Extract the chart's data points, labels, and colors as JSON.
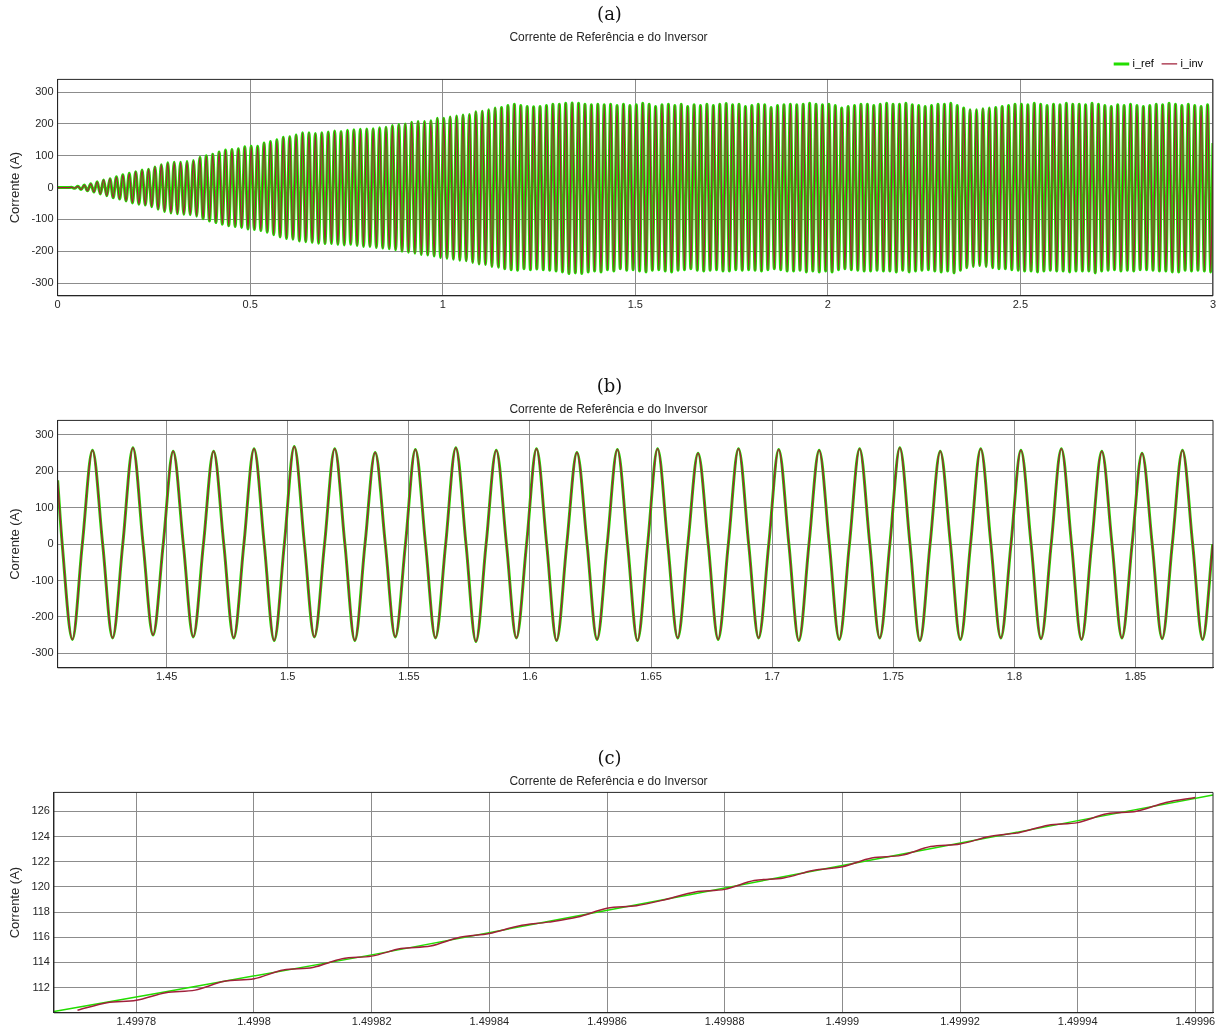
{
  "chart_data": [
    {
      "type": "line",
      "title": "Corrente de Referência e do Inversor",
      "ylabel": "Corrente (A)",
      "annotations": [
        "(a)"
      ],
      "xlim": [
        0,
        3
      ],
      "xticks": [
        0,
        0.5,
        1,
        1.5,
        2,
        2.5,
        3
      ],
      "ylim": [
        -340,
        340
      ],
      "yticks": [
        -300,
        -200,
        -100,
        0,
        100,
        200,
        300
      ],
      "grid": true,
      "legend": "top right",
      "marker": "none",
      "x": [
        0,
        0.0027,
        0.011,
        0.0193,
        0.0277,
        0.036,
        0.0443,
        0.0527,
        0.061,
        0.0693,
        0.0777,
        0.086,
        0.0943,
        0.1027,
        0.111,
        0.1193,
        0.1277,
        0.136,
        0.1443,
        0.1527,
        0.161,
        0.1693,
        0.1777,
        0.186,
        0.1943,
        0.2027,
        0.211,
        0.2193,
        0.2277,
        0.236,
        0.2443,
        0.2527,
        0.261,
        0.2693,
        0.2777,
        0.286,
        0.2943,
        0.3027,
        0.311,
        0.3193,
        0.3277,
        0.336,
        0.3443,
        0.3527,
        0.361,
        0.3693,
        0.3777,
        0.386,
        0.3943,
        0.4027,
        0.411,
        0.4193,
        0.4277,
        0.436,
        0.4443,
        0.4527,
        0.461,
        0.4693,
        0.4777,
        0.486,
        0.4943,
        0.5027,
        0.511,
        0.5193,
        0.5277,
        0.536,
        0.5443,
        0.5527,
        0.561,
        0.5693,
        0.5777,
        0.586,
        0.5943,
        0.6027,
        0.611,
        0.6193,
        0.6277,
        0.636,
        0.6443,
        0.6527,
        0.661,
        0.6693,
        0.6777,
        0.686,
        0.6943,
        0.7027,
        0.711,
        0.7193,
        0.7277,
        0.736,
        0.7443,
        0.7527,
        0.761,
        0.7693,
        0.7777,
        0.786,
        0.7943,
        0.8027,
        0.811,
        0.8193,
        0.8277,
        0.836,
        0.8443,
        0.8527,
        0.861,
        0.8693,
        0.8777,
        0.886,
        0.8943,
        0.9027,
        0.911,
        0.9193,
        0.9277,
        0.936,
        0.9443,
        0.9527,
        0.961,
        0.9693,
        0.9777,
        0.986,
        0.9943,
        1.0027,
        1.011,
        1.0193,
        1.0277,
        1.036,
        1.0443,
        1.0527,
        1.061,
        1.0693,
        1.0777,
        1.086,
        1.0943,
        1.1027,
        1.111,
        1.1193,
        1.1277,
        1.136,
        1.1443,
        1.1527,
        1.161,
        1.1693,
        1.1777,
        1.186,
        1.1943,
        1.2027,
        1.211,
        1.2193,
        1.2277,
        1.236,
        1.2443,
        1.2527,
        1.261,
        1.2693,
        1.2777,
        1.286,
        1.2943,
        1.3027,
        1.311,
        1.3193,
        1.3277,
        1.336,
        1.3443,
        1.3527,
        1.361,
        1.3693,
        1.3777,
        1.386,
        1.3943,
        1.4027,
        1.411,
        1.4193,
        1.4277,
        1.436,
        1.4443,
        1.4527,
        1.461,
        1.4693,
        1.4777,
        1.486,
        1.4943,
        1.5027,
        1.511,
        1.5193,
        1.5277,
        1.536,
        1.5443,
        1.5527,
        1.561,
        1.5693,
        1.5777,
        1.586,
        1.5943,
        1.6027,
        1.611,
        1.6193,
        1.6277,
        1.636,
        1.6443,
        1.6527,
        1.661,
        1.6693,
        1.6777,
        1.686,
        1.6943,
        1.7027,
        1.711,
        1.7193,
        1.7277,
        1.736,
        1.7443,
        1.7527,
        1.761,
        1.7693,
        1.7777,
        1.786,
        1.7943,
        1.8027,
        1.811,
        1.8193,
        1.8277,
        1.836,
        1.8443,
        1.8527,
        1.861,
        1.8693,
        1.8777,
        1.886,
        1.8943,
        1.9027,
        1.911,
        1.9193,
        1.9277,
        1.936,
        1.9443,
        1.9527,
        1.961,
        1.9693,
        1.9777,
        1.986,
        1.9943,
        2.0027,
        2.011,
        2.0193,
        2.0277,
        2.036,
        2.0443,
        2.0527,
        2.061,
        2.0693,
        2.0777,
        2.086,
        2.0943,
        2.1027,
        2.111,
        2.1193,
        2.1277,
        2.136,
        2.1443,
        2.1527,
        2.161,
        2.1693,
        2.1777,
        2.186,
        2.1943,
        2.2027,
        2.211,
        2.2193,
        2.2277,
        2.236,
        2.2443,
        2.2527,
        2.261,
        2.2693,
        2.2777,
        2.286,
        2.2943,
        2.3027,
        2.311,
        2.3193,
        2.3277,
        2.336,
        2.3443,
        2.3527,
        2.361,
        2.3693,
        2.3777,
        2.386,
        2.3943,
        2.4027,
        2.411,
        2.4193,
        2.4277,
        2.436,
        2.4443,
        2.4527,
        2.461,
        2.4693,
        2.4777,
        2.486,
        2.4943,
        2.5027,
        2.511,
        2.5193,
        2.5277,
        2.536,
        2.5443,
        2.5527,
        2.561,
        2.5693,
        2.5777,
        2.586,
        2.5943,
        2.6027,
        2.611,
        2.6193,
        2.6277,
        2.636,
        2.6443,
        2.6527,
        2.661,
        2.6693,
        2.6777,
        2.686,
        2.6943,
        2.7027,
        2.711,
        2.7193,
        2.7277,
        2.736,
        2.7443,
        2.7527,
        2.761,
        2.7693,
        2.7777,
        2.786,
        2.7943,
        2.8027,
        2.811,
        2.8193,
        2.8277,
        2.836,
        2.8443,
        2.8527,
        2.861,
        2.8693,
        2.8777,
        2.886,
        2.8943,
        2.9027,
        2.911,
        2.9193,
        2.9277,
        2.936,
        2.9443,
        2.9527,
        2.961,
        2.9693,
        2.9777,
        2.986,
        2.9943,
        3
      ],
      "series": [
        {
          "name": "i_ref",
          "color": "#22dd00",
          "values": [
            0,
            0,
            0,
            0,
            0,
            1,
            -2,
            4,
            -6,
            8,
            -10,
            12,
            -14,
            18,
            -20,
            24,
            -26,
            28,
            -32,
            34,
            -36,
            40,
            -42,
            45,
            -48,
            50,
            -52,
            55,
            -55,
            58,
            -60,
            65,
            -68,
            72,
            -75,
            78,
            -80,
            80,
            -82,
            80,
            -84,
            82,
            -85,
            85,
            -90,
            95,
            -98,
            100,
            -105,
            105,
            -110,
            112,
            -115,
            118,
            -120,
            120,
            -122,
            122,
            -125,
            128,
            -130,
            130,
            -132,
            130,
            -135,
            140,
            -140,
            145,
            -148,
            150,
            -155,
            158,
            -160,
            160,
            -162,
            165,
            -168,
            172,
            -170,
            172,
            -172,
            170,
            -175,
            172,
            -176,
            175,
            -176,
            178,
            -178,
            176,
            -180,
            180,
            -178,
            182,
            -182,
            183,
            -185,
            184,
            -185,
            185,
            -188,
            188,
            -190,
            190,
            -192,
            195,
            -195,
            198,
            -200,
            200,
            -203,
            205,
            -206,
            208,
            -210,
            208,
            -212,
            210,
            -215,
            218,
            -220,
            218,
            -222,
            222,
            -225,
            225,
            -228,
            228,
            -230,
            230,
            -235,
            238,
            -240,
            240,
            -242,
            245,
            -248,
            250,
            -250,
            252,
            -255,
            258,
            -258,
            262,
            -260,
            258,
            -255,
            255,
            -258,
            254,
            -256,
            255,
            -258,
            258,
            -260,
            262,
            -262,
            262,
            -265,
            265,
            -270,
            266,
            -268,
            265,
            -270,
            262,
            -265,
            260,
            -262,
            262,
            -265,
            260,
            -258,
            262,
            -262,
            258,
            -255,
            262,
            -260,
            258,
            -258,
            260,
            -262,
            265,
            -265,
            262,
            -260,
            255,
            -258,
            260,
            -262,
            262,
            -265,
            258,
            -260,
            262,
            -258,
            255,
            -255,
            260,
            -260,
            258,
            -262,
            262,
            -260,
            258,
            -258,
            262,
            -262,
            264,
            -262,
            260,
            -258,
            262,
            -260,
            255,
            -258,
            258,
            -260,
            262,
            -262,
            260,
            -258,
            252,
            -255,
            258,
            -258,
            260,
            -262,
            262,
            -262,
            260,
            -260,
            262,
            -265,
            265,
            -262,
            262,
            -265,
            260,
            -262,
            262,
            -265,
            258,
            -258,
            250,
            -255,
            255,
            -258,
            258,
            -260,
            262,
            -262,
            262,
            -262,
            258,
            -260,
            262,
            -262,
            265,
            -262,
            262,
            -265,
            262,
            -260,
            265,
            -265,
            260,
            -262,
            258,
            -260,
            255,
            -258,
            258,
            -262,
            262,
            -265,
            262,
            -262,
            265,
            -268,
            258,
            -260,
            250,
            -252,
            245,
            -248,
            245,
            -245,
            248,
            -248,
            250,
            -252,
            252,
            -255,
            255,
            -255,
            258,
            -258,
            262,
            -260,
            262,
            -262,
            260,
            -262,
            265,
            -265,
            262,
            -262,
            258,
            -260,
            262,
            -262,
            260,
            -262,
            265,
            -265,
            262,
            -262,
            262,
            -262,
            260,
            -262,
            265,
            -268,
            262,
            -262,
            258,
            -260,
            255,
            -258,
            260,
            -262,
            258,
            -260,
            262,
            -262,
            258,
            -258,
            255,
            -258,
            258,
            -260,
            262,
            -262,
            260,
            -262,
            265,
            -265,
            262,
            -265,
            258,
            -260,
            262,
            -262,
            258,
            -260,
            255,
            -262,
            260,
            -265,
            140
          ]
        },
        {
          "name": "i_inv",
          "color": "#a0203a",
          "values": [
            0,
            0,
            0,
            0,
            0,
            1,
            -2,
            4,
            -6,
            8,
            -10,
            12,
            -14,
            18,
            -20,
            24,
            -26,
            28,
            -32,
            34,
            -36,
            40,
            -42,
            45,
            -48,
            50,
            -52,
            55,
            -55,
            58,
            -60,
            65,
            -68,
            72,
            -75,
            78,
            -80,
            80,
            -82,
            80,
            -84,
            82,
            -85,
            85,
            -90,
            95,
            -98,
            100,
            -105,
            105,
            -110,
            112,
            -115,
            118,
            -120,
            120,
            -122,
            122,
            -125,
            128,
            -130,
            130,
            -132,
            130,
            -135,
            140,
            -140,
            145,
            -148,
            150,
            -155,
            158,
            -160,
            160,
            -162,
            165,
            -168,
            172,
            -170,
            172,
            -172,
            170,
            -175,
            172,
            -176,
            175,
            -176,
            178,
            -178,
            176,
            -180,
            180,
            -178,
            182,
            -182,
            183,
            -185,
            184,
            -185,
            185,
            -188,
            188,
            -190,
            190,
            -192,
            195,
            -195,
            198,
            -200,
            200,
            -203,
            205,
            -206,
            208,
            -210,
            208,
            -212,
            210,
            -215,
            218,
            -220,
            218,
            -222,
            222,
            -225,
            225,
            -228,
            228,
            -230,
            230,
            -235,
            238,
            -240,
            240,
            -242,
            245,
            -248,
            250,
            -250,
            252,
            -255,
            258,
            -258,
            262,
            -260,
            258,
            -255,
            255,
            -258,
            254,
            -256,
            255,
            -258,
            258,
            -260,
            262,
            -262,
            262,
            -265,
            265,
            -270,
            266,
            -268,
            265,
            -270,
            262,
            -265,
            260,
            -262,
            262,
            -265,
            260,
            -258,
            262,
            -262,
            258,
            -255,
            262,
            -260,
            258,
            -258,
            260,
            -262,
            265,
            -265,
            262,
            -260,
            255,
            -258,
            260,
            -262,
            262,
            -265,
            258,
            -260,
            262,
            -258,
            255,
            -255,
            260,
            -260,
            258,
            -262,
            262,
            -260,
            258,
            -258,
            262,
            -262,
            264,
            -262,
            260,
            -258,
            262,
            -260,
            255,
            -258,
            258,
            -260,
            262,
            -262,
            260,
            -258,
            252,
            -255,
            258,
            -258,
            260,
            -262,
            262,
            -262,
            260,
            -260,
            262,
            -265,
            265,
            -262,
            262,
            -265,
            260,
            -262,
            262,
            -265,
            258,
            -258,
            250,
            -255,
            255,
            -258,
            258,
            -260,
            262,
            -262,
            262,
            -262,
            258,
            -260,
            262,
            -262,
            265,
            -262,
            262,
            -265,
            262,
            -260,
            265,
            -265,
            260,
            -262,
            258,
            -260,
            255,
            -258,
            258,
            -262,
            262,
            -265,
            262,
            -262,
            265,
            -268,
            258,
            -260,
            250,
            -252,
            245,
            -248,
            245,
            -245,
            248,
            -248,
            250,
            -252,
            252,
            -255,
            255,
            -255,
            258,
            -258,
            262,
            -260,
            262,
            -262,
            260,
            -262,
            265,
            -265,
            262,
            -262,
            258,
            -260,
            262,
            -262,
            260,
            -262,
            265,
            -265,
            262,
            -262,
            262,
            -262,
            260,
            -262,
            265,
            -268,
            262,
            -262,
            258,
            -260,
            255,
            -258,
            260,
            -262,
            258,
            -260,
            262,
            -262,
            258,
            -258,
            255,
            -258,
            258,
            -260,
            262,
            -262,
            260,
            -262,
            265,
            -265,
            262,
            -265,
            258,
            -260,
            262,
            -262,
            258,
            -260,
            255,
            -262,
            260,
            -265,
            140
          ]
        }
      ]
    },
    {
      "type": "line",
      "title": "Corrente de Referência e do Inversor",
      "ylabel": "Corrente (A)",
      "annotations": [
        "(b)"
      ],
      "xlim": [
        1.405,
        1.882
      ],
      "xticks": [
        1.45,
        1.5,
        1.55,
        1.6,
        1.65,
        1.7,
        1.75,
        1.8,
        1.85
      ],
      "ylim": [
        -340,
        340
      ],
      "yticks": [
        -300,
        -200,
        -100,
        0,
        100,
        200,
        300
      ],
      "grid": true,
      "marker": "none",
      "x": [
        1.405,
        1.4069,
        1.4111,
        1.4152,
        1.4194,
        1.4236,
        1.4277,
        1.4319,
        1.4361,
        1.4403,
        1.4444,
        1.4486,
        1.4527,
        1.4569,
        1.461,
        1.4652,
        1.4694,
        1.4736,
        1.4777,
        1.4819,
        1.4861,
        1.4903,
        1.4944,
        1.4986,
        1.5027,
        1.5069,
        1.511,
        1.5152,
        1.5194,
        1.5236,
        1.5277,
        1.5319,
        1.5361,
        1.5403,
        1.5444,
        1.5486,
        1.5527,
        1.5569,
        1.561,
        1.5652,
        1.5694,
        1.5736,
        1.5777,
        1.5819,
        1.5861,
        1.5903,
        1.5944,
        1.5986,
        1.6027,
        1.6069,
        1.611,
        1.6152,
        1.6194,
        1.6236,
        1.6277,
        1.6319,
        1.6361,
        1.6403,
        1.6444,
        1.6486,
        1.6527,
        1.6569,
        1.661,
        1.6652,
        1.6694,
        1.6736,
        1.6777,
        1.6819,
        1.6861,
        1.6903,
        1.6944,
        1.6986,
        1.7027,
        1.7069,
        1.711,
        1.7152,
        1.7194,
        1.7236,
        1.7277,
        1.7319,
        1.7361,
        1.7403,
        1.7444,
        1.7486,
        1.7527,
        1.7569,
        1.761,
        1.7652,
        1.7694,
        1.7736,
        1.7777,
        1.7819,
        1.7861,
        1.7903,
        1.7944,
        1.7986,
        1.8027,
        1.8069,
        1.811,
        1.8152,
        1.8194,
        1.8236,
        1.8277,
        1.8319,
        1.8361,
        1.8403,
        1.8444,
        1.8486,
        1.8527,
        1.8569,
        1.861,
        1.8652,
        1.8694,
        1.8736,
        1.8777,
        1.8819
      ],
      "series": [
        {
          "color": "#22dd00",
          "values": [
            175,
            0,
            -262,
            0,
            258,
            0,
            -258,
            0,
            265,
            0,
            -250,
            0,
            255,
            0,
            -255,
            0,
            255,
            0,
            -258,
            0,
            262,
            0,
            -265,
            0,
            268,
            0,
            -255,
            0,
            262,
            0,
            -265,
            0,
            252,
            0,
            -255,
            0,
            260,
            0,
            -258,
            0,
            265,
            0,
            -268,
            0,
            258,
            0,
            -258,
            0,
            262,
            0,
            -265,
            0,
            252,
            0,
            -262,
            0,
            260,
            0,
            -265,
            0,
            262,
            0,
            -258,
            0,
            250,
            0,
            -262,
            0,
            262,
            0,
            -258,
            0,
            260,
            0,
            -265,
            0,
            258,
            0,
            -262,
            0,
            262,
            0,
            -258,
            0,
            265,
            0,
            -265,
            0,
            255,
            0,
            -262,
            0,
            262,
            0,
            -258,
            0,
            258,
            0,
            -260,
            0,
            262,
            0,
            -262,
            0,
            255,
            0,
            -258,
            0,
            250,
            0,
            -260,
            0,
            258,
            0,
            -262,
            0
          ]
        },
        {
          "color": "#a0203a",
          "values": [
            175,
            0,
            -262,
            0,
            258,
            0,
            -258,
            0,
            265,
            0,
            -250,
            0,
            255,
            0,
            -255,
            0,
            255,
            0,
            -258,
            0,
            262,
            0,
            -265,
            0,
            268,
            0,
            -255,
            0,
            262,
            0,
            -265,
            0,
            252,
            0,
            -255,
            0,
            260,
            0,
            -258,
            0,
            265,
            0,
            -268,
            0,
            258,
            0,
            -258,
            0,
            262,
            0,
            -265,
            0,
            252,
            0,
            -262,
            0,
            260,
            0,
            -265,
            0,
            262,
            0,
            -258,
            0,
            250,
            0,
            -262,
            0,
            262,
            0,
            -258,
            0,
            260,
            0,
            -265,
            0,
            258,
            0,
            -262,
            0,
            262,
            0,
            -258,
            0,
            265,
            0,
            -265,
            0,
            255,
            0,
            -262,
            0,
            262,
            0,
            -258,
            0,
            258,
            0,
            -260,
            0,
            262,
            0,
            -262,
            0,
            255,
            0,
            -258,
            0,
            250,
            0,
            -260,
            0,
            258,
            0,
            -262,
            0
          ]
        }
      ]
    },
    {
      "type": "line",
      "title": "Corrente de Referência e do Inversor",
      "ylabel": "Corrente (A)",
      "annotations": [
        "(c)"
      ],
      "xlim": [
        1.499766,
        1.499963
      ],
      "xticks": [
        1.49978,
        1.4998,
        1.49982,
        1.49984,
        1.49986,
        1.49988,
        1.4999,
        1.49992,
        1.49994,
        1.49996
      ],
      "ylim": [
        110,
        127.5
      ],
      "yticks": [
        112,
        114,
        116,
        118,
        120,
        122,
        124,
        126
      ],
      "grid": true,
      "marker": "none",
      "series": [
        {
          "color": "#22dd00",
          "x": [
            1.499766,
            1.49982,
            1.4999,
            1.499963
          ],
          "values": [
            110.1,
            114.6,
            121.7,
            127.3
          ]
        },
        {
          "color": "#a0203a",
          "x": [
            1.49977,
            1.499775,
            1.49978,
            1.499785,
            1.49979,
            1.499795,
            1.4998,
            1.499805,
            1.49981,
            1.499815,
            1.49982,
            1.499825,
            1.49983,
            1.499835,
            1.49984,
            1.499845,
            1.49985,
            1.499855,
            1.49986,
            1.499865,
            1.49987,
            1.499875,
            1.49988,
            1.499885,
            1.49989,
            1.499895,
            1.4999,
            1.499905,
            1.49991,
            1.499915,
            1.49992,
            1.499925,
            1.49993,
            1.499935,
            1.49994,
            1.499945,
            1.49995,
            1.499955,
            1.49996
          ],
          "values": [
            110.2,
            110.8,
            111.0,
            111.6,
            111.8,
            112.5,
            112.7,
            113.4,
            113.6,
            114.3,
            114.5,
            115.1,
            115.3,
            116.0,
            116.3,
            116.9,
            117.2,
            117.6,
            118.3,
            118.5,
            119.0,
            119.6,
            119.8,
            120.5,
            120.7,
            121.3,
            121.6,
            122.3,
            122.5,
            123.2,
            123.4,
            124.0,
            124.3,
            124.9,
            125.1,
            125.8,
            126.0,
            126.7,
            127.1
          ]
        }
      ]
    }
  ]
}
